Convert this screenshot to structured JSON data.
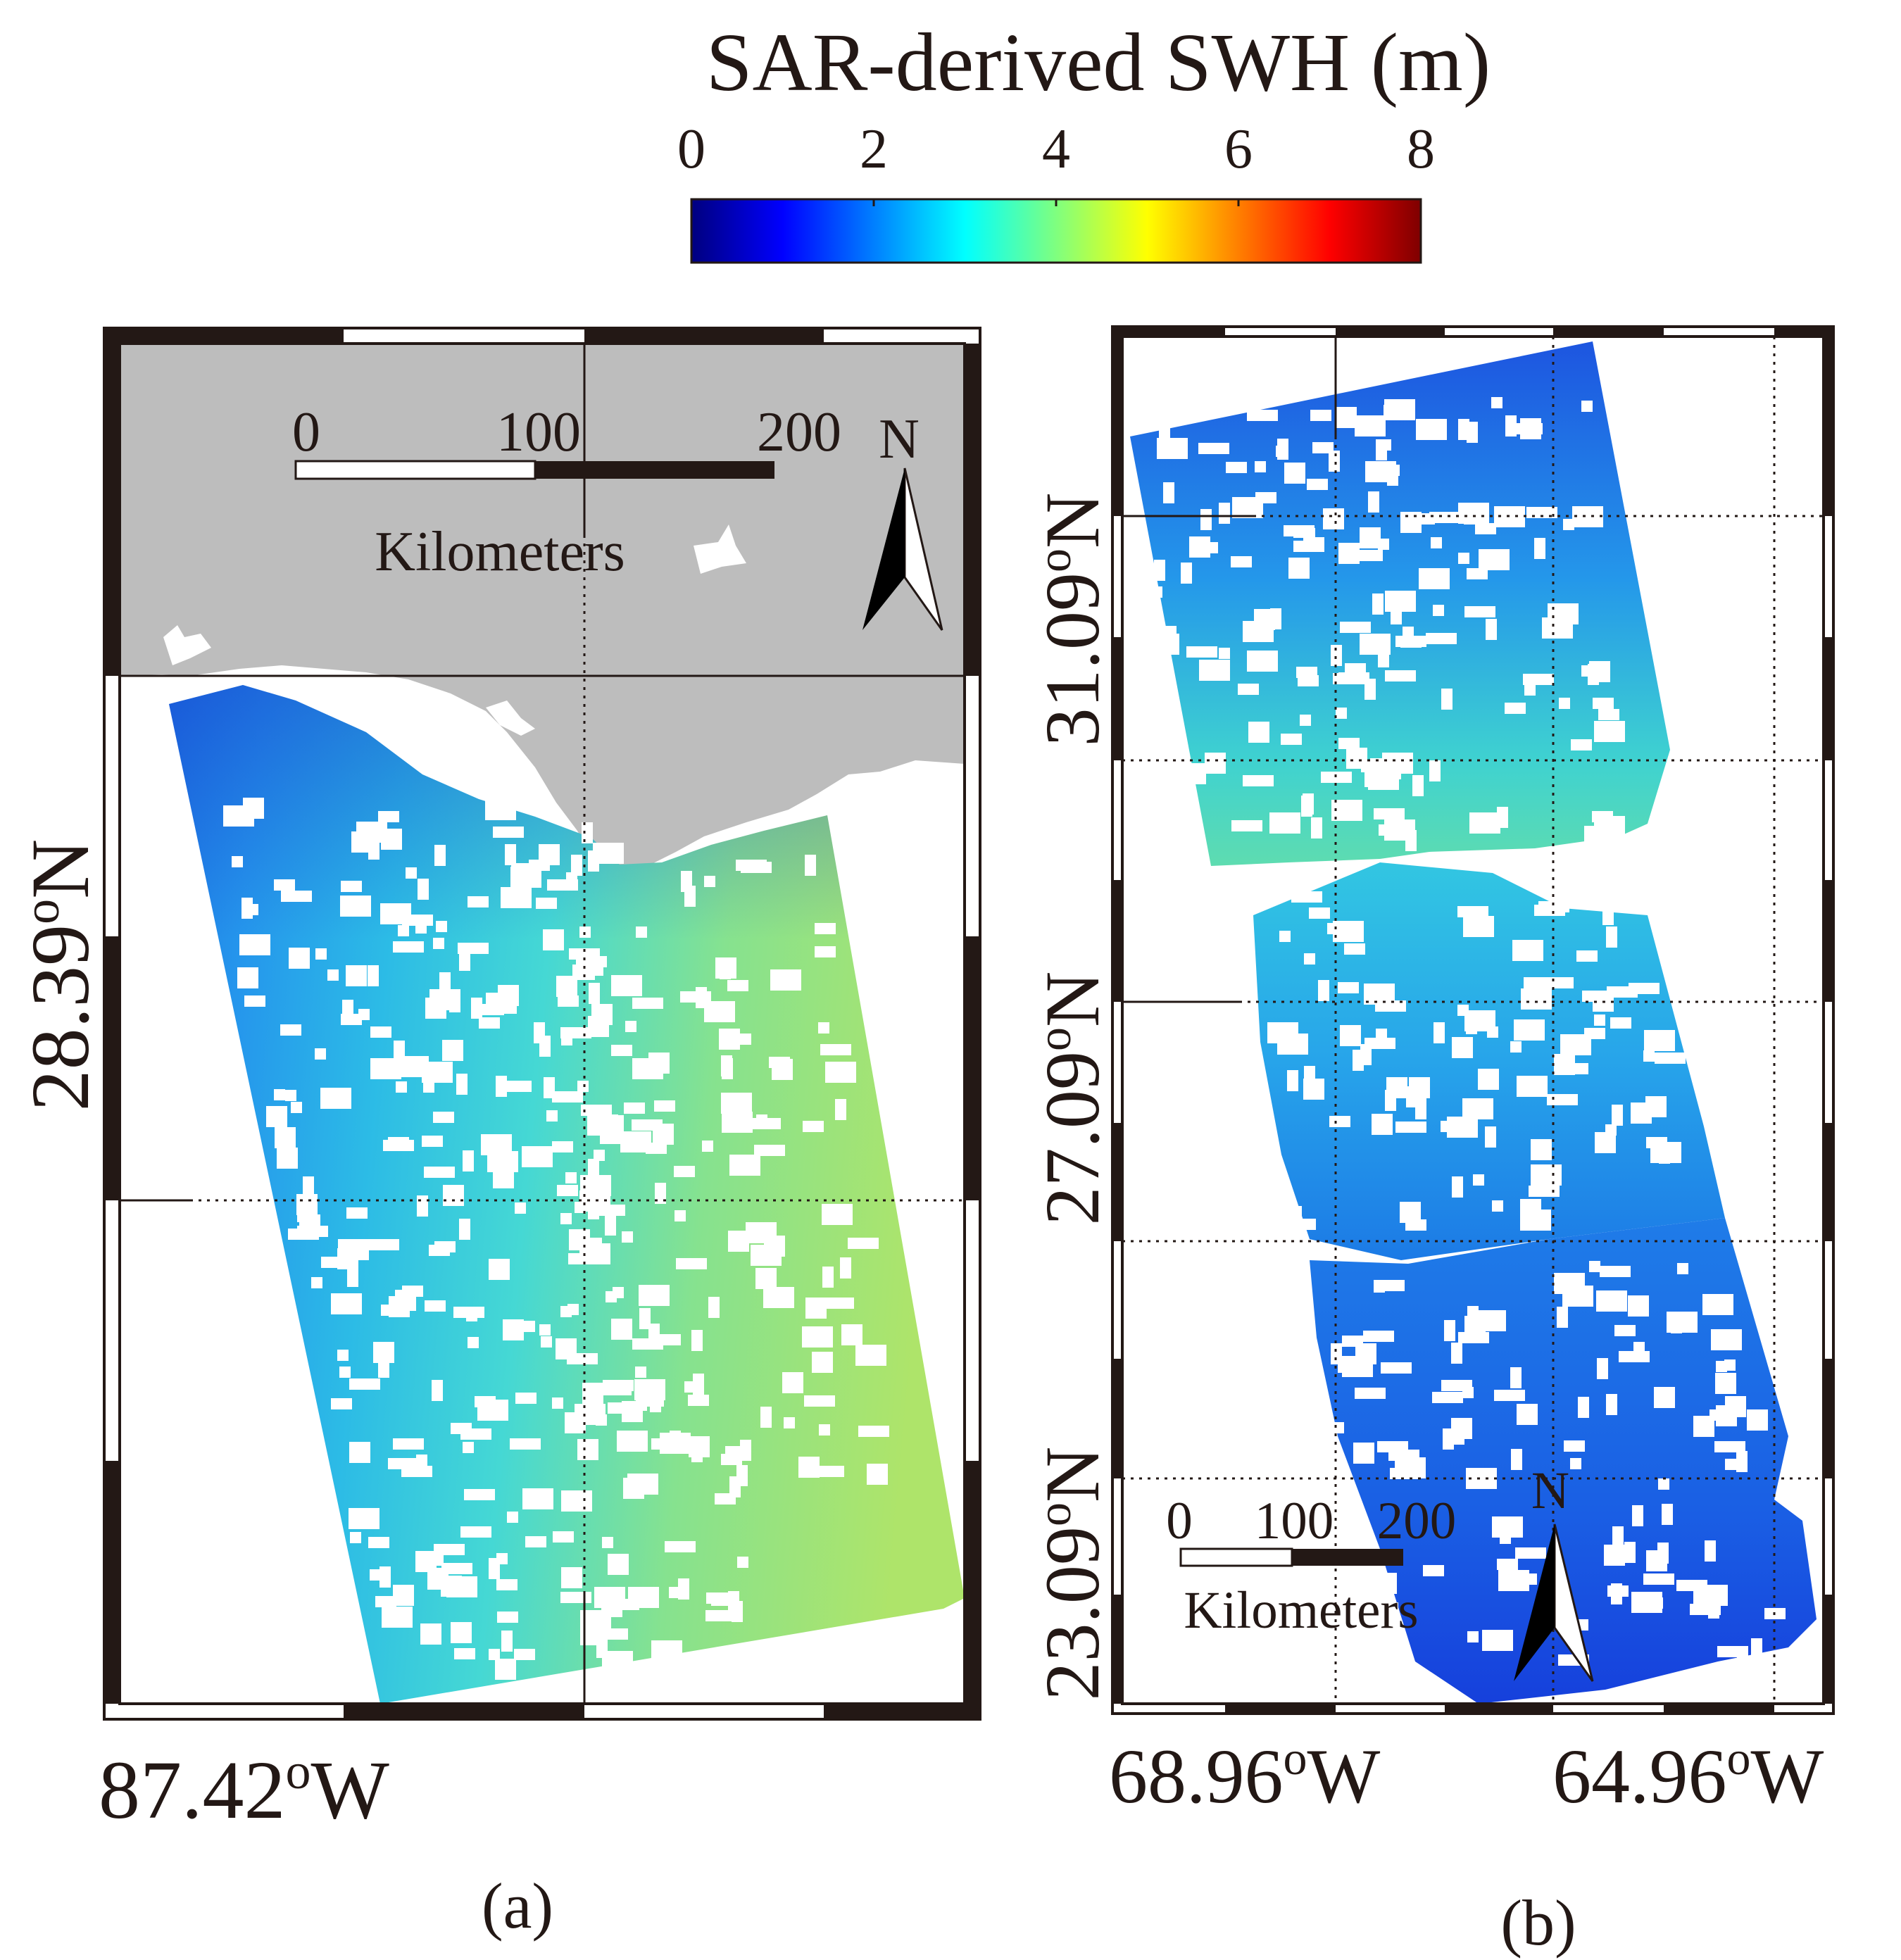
{
  "colorbar": {
    "title": "SAR-derived SWH (m)",
    "ticks": [
      "0",
      "2",
      "4",
      "6",
      "8"
    ],
    "range": [
      0,
      8
    ],
    "colormap": [
      "#00007f",
      "#0000ff",
      "#007fff",
      "#00ffff",
      "#7fff7f",
      "#ffff00",
      "#ff7f00",
      "#ff0000",
      "#7f0000"
    ]
  },
  "panel_a": {
    "caption": "(a)",
    "lat_label": "28.39",
    "lat_suffix": "N",
    "lon_label": "87.42",
    "lon_suffix": "W",
    "degree_mark": "o",
    "scale_bar": {
      "ticks": [
        "0",
        "100",
        "200"
      ],
      "unit": "Kilometers"
    },
    "north_arrow": "N",
    "land_color": "#bdbdbd",
    "swh_range_m": [
      1.5,
      4.8
    ]
  },
  "panel_b": {
    "caption": "(b)",
    "lat_labels": [
      "31.09",
      "27.09",
      "23.09"
    ],
    "lat_suffix": "N",
    "lon_labels": [
      "68.96",
      "64.96"
    ],
    "lon_suffix": "W",
    "degree_mark": "o",
    "scale_bar": {
      "ticks": [
        "0",
        "100",
        "200"
      ],
      "unit": "Kilometers"
    },
    "north_arrow": "N",
    "swh_range_m": [
      1.0,
      3.8
    ]
  }
}
